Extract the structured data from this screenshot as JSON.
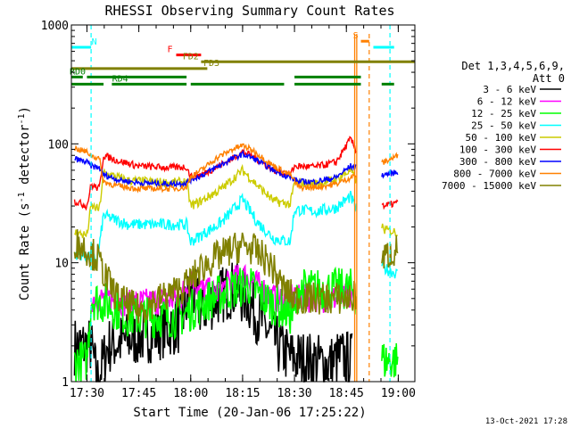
{
  "chart_data": {
    "type": "line",
    "title": "RHESSI Observing Summary Count Rates",
    "xlabel": "Start Time (20-Jan-06 17:25:22)",
    "ylabel_main": "Count Rate (s",
    "ylabel_sup1": "-1",
    "ylabel_mid": " detector",
    "ylabel_sup2": "-1",
    "ylabel_end": ")",
    "yscale": "log",
    "ylim": [
      1,
      1000
    ],
    "xlim": [
      17.425,
      19.08
    ],
    "x_ticks": [
      {
        "v": 17.5,
        "label": "17:30"
      },
      {
        "v": 17.75,
        "label": "17:45"
      },
      {
        "v": 18.0,
        "label": "18:00"
      },
      {
        "v": 18.25,
        "label": "18:15"
      },
      {
        "v": 18.5,
        "label": "18:30"
      },
      {
        "v": 18.75,
        "label": "18:45"
      },
      {
        "v": 19.0,
        "label": "19:00"
      }
    ],
    "y_ticks": [
      {
        "v": 1,
        "label": "1"
      },
      {
        "v": 10,
        "label": "10"
      },
      {
        "v": 100,
        "label": "100"
      },
      {
        "v": 1000,
        "label": "1000"
      }
    ],
    "legend_title1": "Det 1,3,4,5,6,9,",
    "legend_title2": "Att 0",
    "series": [
      {
        "name": "3 - 6 keV",
        "color": "#000000",
        "noise": 0.25,
        "points": [
          [
            17.44,
            2
          ],
          [
            17.52,
            2
          ],
          [
            17.55,
            1
          ],
          [
            17.6,
            2
          ],
          [
            17.95,
            3
          ],
          [
            18.0,
            6
          ],
          [
            18.05,
            4
          ],
          [
            18.12,
            5
          ],
          [
            18.2,
            6
          ],
          [
            18.27,
            5
          ],
          [
            18.35,
            3
          ],
          [
            18.42,
            2
          ],
          [
            18.48,
            1.6
          ],
          [
            18.58,
            1.5
          ],
          [
            18.67,
            1.4
          ],
          [
            18.72,
            1.6
          ],
          [
            18.78,
            1.5
          ]
        ]
      },
      {
        "name": "6 - 12 keV",
        "color": "#ff00ff",
        "noise": 0.12,
        "points": [
          [
            17.52,
            5
          ],
          [
            17.6,
            5
          ],
          [
            17.7,
            4.5
          ],
          [
            17.95,
            5
          ],
          [
            18.0,
            8
          ],
          [
            18.05,
            6
          ],
          [
            18.12,
            5.5
          ],
          [
            18.2,
            7
          ],
          [
            18.25,
            8
          ],
          [
            18.3,
            7
          ],
          [
            18.35,
            6
          ],
          [
            18.4,
            5
          ],
          [
            18.48,
            5
          ],
          [
            18.6,
            5
          ],
          [
            18.78,
            5
          ]
        ]
      },
      {
        "name": "12 - 25 keV",
        "color": "#00ff00",
        "noise": 0.18,
        "points": [
          [
            17.44,
            1.5
          ],
          [
            17.5,
            1.5
          ],
          [
            17.52,
            5
          ],
          [
            17.6,
            4.5
          ],
          [
            17.7,
            3.5
          ],
          [
            17.95,
            3.5
          ],
          [
            18.0,
            4
          ],
          [
            18.1,
            5
          ],
          [
            18.2,
            6
          ],
          [
            18.28,
            6.5
          ],
          [
            18.35,
            5
          ],
          [
            18.45,
            4
          ],
          [
            18.5,
            3.5
          ],
          [
            18.52,
            6
          ],
          [
            18.6,
            6
          ],
          [
            18.7,
            6
          ],
          [
            18.78,
            6
          ],
          [
            18.93,
            1.5
          ],
          [
            19.0,
            1.5
          ]
        ]
      },
      {
        "name": "25 - 50 keV",
        "color": "#00ffff",
        "noise": 0.05,
        "points": [
          [
            17.44,
            12
          ],
          [
            17.52,
            11
          ],
          [
            17.55,
            10.5
          ],
          [
            17.58,
            25
          ],
          [
            17.7,
            21
          ],
          [
            17.9,
            21
          ],
          [
            17.98,
            21
          ],
          [
            18.0,
            15
          ],
          [
            18.05,
            17
          ],
          [
            18.15,
            22
          ],
          [
            18.25,
            34
          ],
          [
            18.32,
            22
          ],
          [
            18.4,
            16
          ],
          [
            18.48,
            15
          ],
          [
            18.5,
            28
          ],
          [
            18.6,
            27
          ],
          [
            18.7,
            29
          ],
          [
            18.77,
            36
          ],
          [
            18.93,
            9
          ],
          [
            19.0,
            8
          ]
        ]
      },
      {
        "name": "50 - 100 keV",
        "color": "#cccc00",
        "noise": 0.04,
        "points": [
          [
            17.44,
            18
          ],
          [
            17.5,
            17
          ],
          [
            17.52,
            30
          ],
          [
            17.56,
            28
          ],
          [
            17.58,
            57
          ],
          [
            17.7,
            49
          ],
          [
            17.9,
            47
          ],
          [
            17.98,
            48
          ],
          [
            18.0,
            30
          ],
          [
            18.05,
            33
          ],
          [
            18.15,
            42
          ],
          [
            18.25,
            60
          ],
          [
            18.32,
            45
          ],
          [
            18.4,
            33
          ],
          [
            18.48,
            31
          ],
          [
            18.5,
            47
          ],
          [
            18.6,
            46
          ],
          [
            18.7,
            50
          ],
          [
            18.77,
            60
          ],
          [
            18.93,
            19
          ],
          [
            19.0,
            18
          ]
        ]
      },
      {
        "name": "100 - 300 keV",
        "color": "#ff0000",
        "noise": 0.03,
        "points": [
          [
            17.44,
            33
          ],
          [
            17.5,
            30
          ],
          [
            17.52,
            45
          ],
          [
            17.56,
            42
          ],
          [
            17.58,
            80
          ],
          [
            17.65,
            72
          ],
          [
            17.75,
            65
          ],
          [
            17.9,
            63
          ],
          [
            17.98,
            64
          ],
          [
            18.0,
            53
          ],
          [
            18.05,
            55
          ],
          [
            18.12,
            63
          ],
          [
            18.2,
            75
          ],
          [
            18.25,
            86
          ],
          [
            18.3,
            78
          ],
          [
            18.4,
            60
          ],
          [
            18.48,
            55
          ],
          [
            18.5,
            65
          ],
          [
            18.6,
            64
          ],
          [
            18.7,
            70
          ],
          [
            18.77,
            110
          ],
          [
            18.93,
            30
          ],
          [
            19.0,
            32
          ]
        ]
      },
      {
        "name": "300 - 800 keV",
        "color": "#0000ff",
        "noise": 0.025,
        "points": [
          [
            17.44,
            75
          ],
          [
            17.5,
            70
          ],
          [
            17.52,
            65
          ],
          [
            17.56,
            63
          ],
          [
            17.58,
            55
          ],
          [
            17.65,
            50
          ],
          [
            17.75,
            47
          ],
          [
            17.9,
            46
          ],
          [
            17.98,
            47
          ],
          [
            18.0,
            50
          ],
          [
            18.05,
            54
          ],
          [
            18.12,
            63
          ],
          [
            18.2,
            75
          ],
          [
            18.25,
            82
          ],
          [
            18.3,
            76
          ],
          [
            18.4,
            60
          ],
          [
            18.48,
            52
          ],
          [
            18.52,
            48
          ],
          [
            18.6,
            48
          ],
          [
            18.7,
            52
          ],
          [
            18.77,
            65
          ],
          [
            18.93,
            55
          ],
          [
            19.0,
            58
          ]
        ]
      },
      {
        "name": "800 - 7000 keV",
        "color": "#ff8000",
        "noise": 0.025,
        "points": [
          [
            17.44,
            92
          ],
          [
            17.5,
            85
          ],
          [
            17.52,
            80
          ],
          [
            17.56,
            75
          ],
          [
            17.58,
            48
          ],
          [
            17.65,
            44
          ],
          [
            17.75,
            42
          ],
          [
            17.9,
            42
          ],
          [
            17.98,
            43
          ],
          [
            18.0,
            53
          ],
          [
            18.05,
            60
          ],
          [
            18.12,
            75
          ],
          [
            18.2,
            90
          ],
          [
            18.25,
            97
          ],
          [
            18.3,
            88
          ],
          [
            18.4,
            65
          ],
          [
            18.48,
            55
          ],
          [
            18.52,
            43
          ],
          [
            18.6,
            43
          ],
          [
            18.7,
            46
          ],
          [
            18.77,
            52
          ],
          [
            18.93,
            70
          ],
          [
            19.0,
            80
          ]
        ]
      },
      {
        "name": "7000 - 15000 keV",
        "color": "#808000",
        "noise": 0.14,
        "points": [
          [
            17.44,
            15
          ],
          [
            17.5,
            13
          ],
          [
            17.55,
            11
          ],
          [
            17.6,
            7
          ],
          [
            17.65,
            5
          ],
          [
            17.75,
            4
          ],
          [
            17.85,
            5
          ],
          [
            17.95,
            6
          ],
          [
            18.0,
            7
          ],
          [
            18.05,
            9
          ],
          [
            18.12,
            11
          ],
          [
            18.2,
            13
          ],
          [
            18.25,
            14
          ],
          [
            18.3,
            13
          ],
          [
            18.38,
            10
          ],
          [
            18.45,
            6
          ],
          [
            18.5,
            5
          ],
          [
            18.6,
            5
          ],
          [
            18.7,
            5
          ],
          [
            18.78,
            5
          ],
          [
            18.93,
            11
          ],
          [
            19.0,
            13
          ]
        ]
      }
    ],
    "markers": [
      {
        "label": "N",
        "color": "#00ffff",
        "y": 650,
        "x1": 17.425,
        "x2": 17.52,
        "lx": 17.535
      },
      {
        "label": "S",
        "color": "#ff8000",
        "y": 730,
        "x1": 18.82,
        "x2": 18.86,
        "lx": 18.795
      },
      {
        "label": "F",
        "color": "#ff0000",
        "y": 560,
        "x1": 17.93,
        "x2": 18.05,
        "lx": 17.9
      },
      {
        "label": "FD2",
        "color": "#808000",
        "y": 490,
        "x1": 18.05,
        "x2": 19.08,
        "lx": 18.0
      },
      {
        "label": "FD3",
        "color": "#808000",
        "y": 430,
        "x1": 17.425,
        "x2": 18.08,
        "lx": 18.1
      },
      {
        "label": "RD0",
        "color": "#008000",
        "y": 365,
        "x1": 17.425,
        "x2": 17.48,
        "lx": 17.455
      },
      {
        "label": "RD4",
        "color": "#008000",
        "y": 318,
        "x1": 17.425,
        "x2": 17.58,
        "lx": 17.66
      }
    ],
    "green_segments": [
      [
        17.62,
        17.98
      ],
      [
        18.0,
        18.45
      ],
      [
        18.5,
        18.82
      ],
      [
        18.92,
        18.98
      ]
    ],
    "green_y": 318,
    "green_seg2": [
      [
        17.5,
        17.98
      ],
      [
        18.5,
        18.82
      ]
    ],
    "green_y2": 365,
    "cyan_seg": [
      [
        18.88,
        18.98
      ]
    ],
    "cyan_y": 650,
    "cyan_dashed": [
      17.52,
      18.96
    ],
    "orange_solid": [
      18.79,
      18.8
    ],
    "orange_dashed": [
      18.86
    ]
  },
  "timestamp": "13-Oct-2021 17:28"
}
